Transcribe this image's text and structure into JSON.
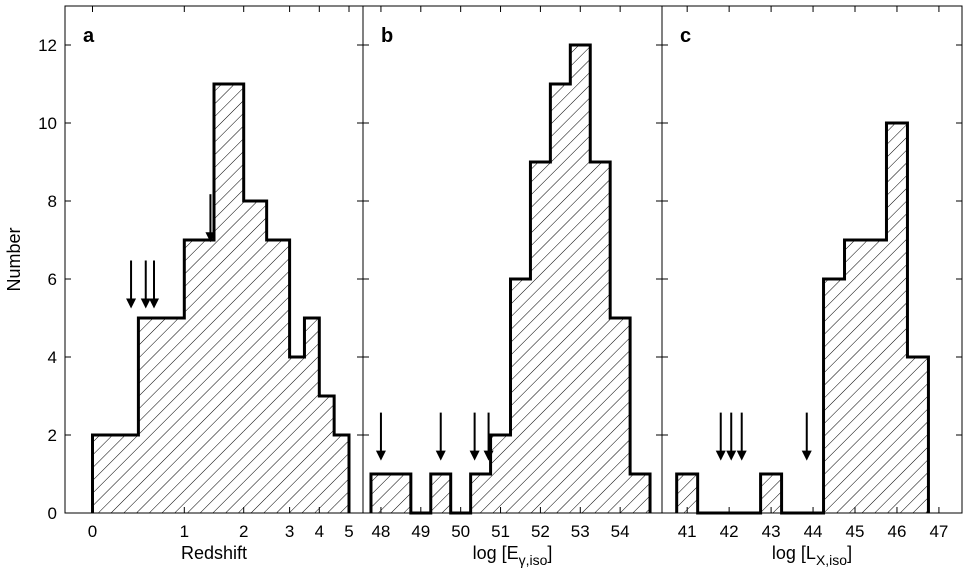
{
  "chart_data": [
    {
      "type": "bar",
      "panel_label": "a",
      "xlabel": "Redshift",
      "ylabel": "Number",
      "ylim": [
        0,
        13
      ],
      "y_ticks": [
        0,
        2,
        4,
        6,
        8,
        10,
        12
      ],
      "x_ticks": [
        {
          "v": 0,
          "label": "0"
        },
        {
          "v": 1,
          "label": "1"
        },
        {
          "v": 2,
          "label": "2"
        },
        {
          "v": 3,
          "label": "3"
        },
        {
          "v": 4,
          "label": "4"
        },
        {
          "v": 5,
          "label": "5"
        }
      ],
      "bins": [
        {
          "start": 0.0,
          "end": 0.5,
          "value": 2
        },
        {
          "start": 0.5,
          "end": 1.0,
          "value": 5
        },
        {
          "start": 1.0,
          "end": 1.5,
          "value": 7
        },
        {
          "start": 1.5,
          "end": 2.0,
          "value": 11
        },
        {
          "start": 2.0,
          "end": 2.5,
          "value": 8
        },
        {
          "start": 2.5,
          "end": 3.0,
          "value": 7
        },
        {
          "start": 3.0,
          "end": 3.5,
          "value": 4
        },
        {
          "start": 3.5,
          "end": 4.0,
          "value": 5
        },
        {
          "start": 4.0,
          "end": 4.5,
          "value": 3
        },
        {
          "start": 4.5,
          "end": 5.0,
          "value": 2
        }
      ],
      "arrows": [
        {
          "x": 0.42,
          "tip": 5.5
        },
        {
          "x": 0.58,
          "tip": 5.5
        },
        {
          "x": 0.67,
          "tip": 5.5
        },
        {
          "x": 1.44,
          "tip": 7.2
        }
      ]
    },
    {
      "type": "bar",
      "panel_label": "b",
      "xlabel": "log [E",
      "xlabel_sub": "γ,iso",
      "xlabel_close": "]",
      "ylim": [
        0,
        13
      ],
      "y_ticks": [
        0,
        2,
        4,
        6,
        8,
        10,
        12
      ],
      "x_ticks": [
        {
          "v": 48,
          "label": "48"
        },
        {
          "v": 49,
          "label": "49"
        },
        {
          "v": 50,
          "label": "50"
        },
        {
          "v": 51,
          "label": "51"
        },
        {
          "v": 52,
          "label": "52"
        },
        {
          "v": 53,
          "label": "53"
        },
        {
          "v": 54,
          "label": "54"
        }
      ],
      "bins": [
        {
          "start": 47.75,
          "end": 48.25,
          "value": 1
        },
        {
          "start": 48.25,
          "end": 48.75,
          "value": 1
        },
        {
          "start": 48.75,
          "end": 49.25,
          "value": 0
        },
        {
          "start": 49.25,
          "end": 49.75,
          "value": 1
        },
        {
          "start": 49.75,
          "end": 50.25,
          "value": 0
        },
        {
          "start": 50.25,
          "end": 50.75,
          "value": 1
        },
        {
          "start": 50.75,
          "end": 51.25,
          "value": 2
        },
        {
          "start": 51.25,
          "end": 51.75,
          "value": 6
        },
        {
          "start": 51.75,
          "end": 52.25,
          "value": 9
        },
        {
          "start": 52.25,
          "end": 52.75,
          "value": 11
        },
        {
          "start": 52.75,
          "end": 53.25,
          "value": 12
        },
        {
          "start": 53.25,
          "end": 53.75,
          "value": 9
        },
        {
          "start": 53.75,
          "end": 54.25,
          "value": 5
        },
        {
          "start": 54.25,
          "end": 54.75,
          "value": 1
        }
      ],
      "arrows": [
        {
          "x": 48.0,
          "tip": 1.6
        },
        {
          "x": 49.5,
          "tip": 1.6
        },
        {
          "x": 50.35,
          "tip": 1.6
        },
        {
          "x": 50.7,
          "tip": 1.6
        }
      ]
    },
    {
      "type": "bar",
      "panel_label": "c",
      "xlabel": "log [L",
      "xlabel_sub": "X,iso",
      "xlabel_close": "]",
      "ylim": [
        0,
        13
      ],
      "y_ticks": [
        0,
        2,
        4,
        6,
        8,
        10,
        12
      ],
      "x_ticks": [
        {
          "v": 41,
          "label": "41"
        },
        {
          "v": 42,
          "label": "42"
        },
        {
          "v": 43,
          "label": "43"
        },
        {
          "v": 44,
          "label": "44"
        },
        {
          "v": 45,
          "label": "45"
        },
        {
          "v": 46,
          "label": "46"
        },
        {
          "v": 47,
          "label": "47"
        }
      ],
      "bins": [
        {
          "start": 40.75,
          "end": 41.25,
          "value": 1
        },
        {
          "start": 41.25,
          "end": 42.75,
          "value": 0
        },
        {
          "start": 42.75,
          "end": 43.25,
          "value": 1
        },
        {
          "start": 43.25,
          "end": 44.25,
          "value": 0
        },
        {
          "start": 44.25,
          "end": 44.75,
          "value": 6
        },
        {
          "start": 44.75,
          "end": 45.25,
          "value": 7
        },
        {
          "start": 45.25,
          "end": 45.75,
          "value": 7
        },
        {
          "start": 45.75,
          "end": 46.25,
          "value": 10
        },
        {
          "start": 46.25,
          "end": 46.75,
          "value": 4
        }
      ],
      "arrows": [
        {
          "x": 41.8,
          "tip": 1.6
        },
        {
          "x": 42.05,
          "tip": 1.6
        },
        {
          "x": 42.3,
          "tip": 1.6
        },
        {
          "x": 43.85,
          "tip": 1.6
        }
      ]
    }
  ]
}
